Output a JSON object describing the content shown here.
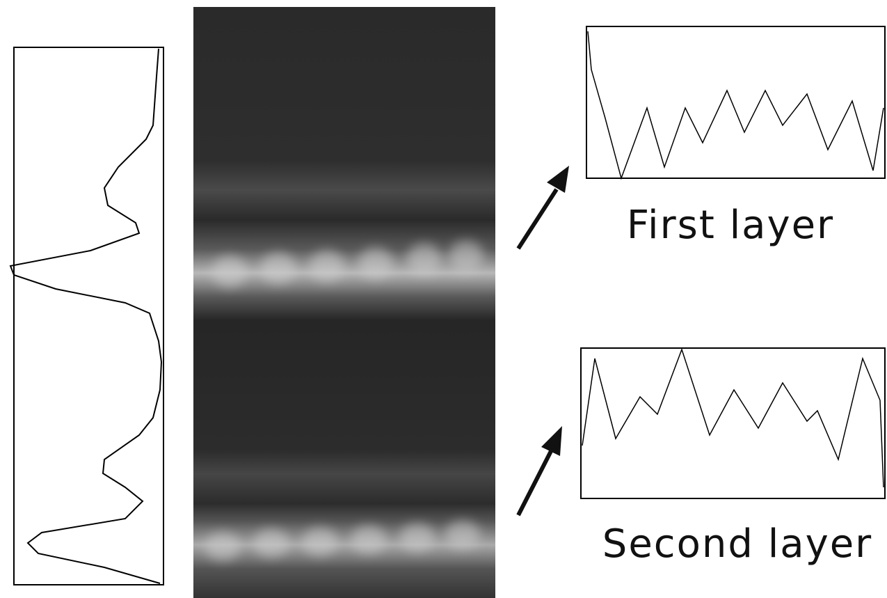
{
  "panels": [
    {
      "label": "First layer"
    },
    {
      "label": "Second layer"
    }
  ]
}
